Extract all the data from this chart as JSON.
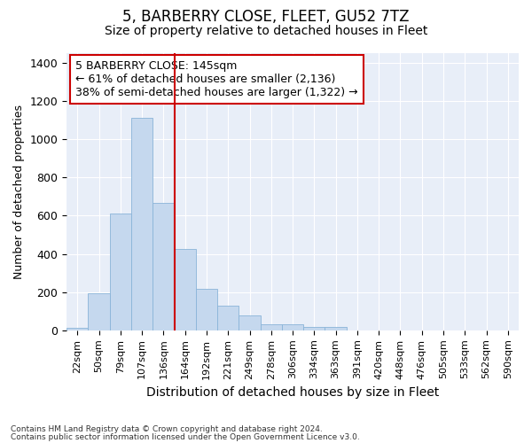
{
  "title": "5, BARBERRY CLOSE, FLEET, GU52 7TZ",
  "subtitle": "Size of property relative to detached houses in Fleet",
  "xlabel": "Distribution of detached houses by size in Fleet",
  "ylabel": "Number of detached properties",
  "footnote1": "Contains HM Land Registry data © Crown copyright and database right 2024.",
  "footnote2": "Contains public sector information licensed under the Open Government Licence v3.0.",
  "annotation_line1": "5 BARBERRY CLOSE: 145sqm",
  "annotation_line2": "← 61% of detached houses are smaller (2,136)",
  "annotation_line3": "38% of semi-detached houses are larger (1,322) →",
  "bar_color": "#c5d8ee",
  "bar_edgecolor": "#8ab4d8",
  "vline_color": "#cc0000",
  "vline_x_idx": 4,
  "bins": [
    "22sqm",
    "50sqm",
    "79sqm",
    "107sqm",
    "136sqm",
    "164sqm",
    "192sqm",
    "221sqm",
    "249sqm",
    "278sqm",
    "306sqm",
    "334sqm",
    "363sqm",
    "391sqm",
    "420sqm",
    "448sqm",
    "476sqm",
    "505sqm",
    "533sqm",
    "562sqm",
    "590sqm"
  ],
  "values": [
    15,
    195,
    610,
    1110,
    665,
    425,
    215,
    130,
    80,
    30,
    30,
    20,
    20,
    0,
    0,
    0,
    0,
    0,
    0,
    0,
    0
  ],
  "ylim": [
    0,
    1450
  ],
  "yticks": [
    0,
    200,
    400,
    600,
    800,
    1000,
    1200,
    1400
  ],
  "background_color": "#e8eef8",
  "grid_color": "#ffffff",
  "title_fontsize": 12,
  "subtitle_fontsize": 10,
  "annotation_box_color": "#ffffff",
  "annotation_box_edgecolor": "#cc0000"
}
